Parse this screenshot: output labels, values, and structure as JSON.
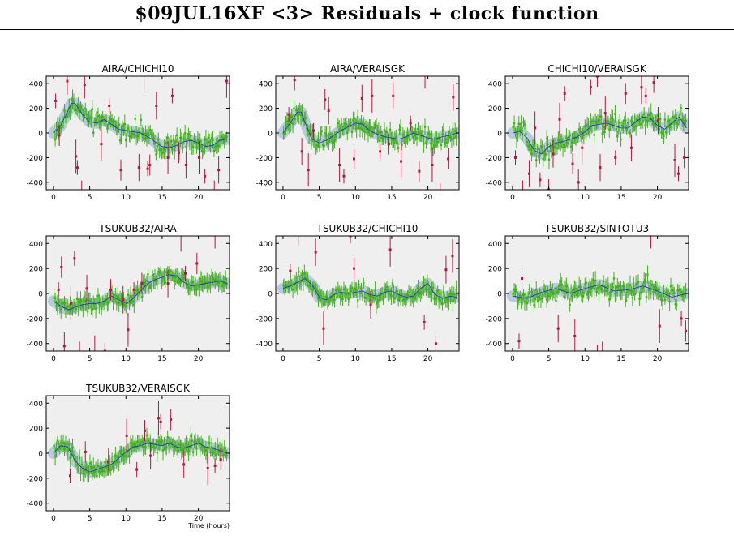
{
  "header": {
    "title": "$09JUL16XF <3> Residuals + clock function"
  },
  "colors": {
    "good_points": "#44b020",
    "flagged_points": "#b01840",
    "clock_function": "#2030c0",
    "clock_band": "#b4c4dc",
    "panel_background": "#efefef"
  },
  "chart_data": [
    {
      "type": "scatter",
      "title": "AIRA/CHICHI10",
      "xlabel": "",
      "ylabel": "",
      "xlim": [
        -1,
        24.3
      ],
      "ylim": [
        -460,
        460
      ],
      "xticks": [
        0,
        5,
        10,
        15,
        20
      ],
      "yticks": [
        -400,
        -200,
        0,
        200,
        400
      ],
      "grid": false,
      "clock_function": {
        "x": [
          0,
          1,
          2,
          2.5,
          3,
          4,
          5,
          6,
          7,
          8,
          9,
          10,
          11,
          12,
          13,
          14,
          15,
          16,
          17,
          18,
          19,
          20,
          21,
          22,
          23,
          24
        ],
        "y": [
          0,
          60,
          180,
          240,
          240,
          150,
          90,
          80,
          110,
          70,
          30,
          20,
          10,
          0,
          -30,
          -70,
          -110,
          -120,
          -100,
          -70,
          -60,
          -80,
          -110,
          -100,
          -60,
          -50
        ]
      },
      "flagged": {
        "x": [
          0.3,
          0.8,
          1.9,
          3.1,
          3.3,
          3.9,
          4.3,
          6.6,
          7.7,
          9.3,
          11.8,
          12.5,
          13.0,
          13.3,
          14.2,
          15.8,
          16.4,
          17.3,
          18.3,
          20.1,
          20.9,
          22.2,
          22.8,
          23.9
        ],
        "y": [
          260,
          -20,
          420,
          -190,
          -280,
          -470,
          390,
          -90,
          220,
          -300,
          -280,
          470,
          -290,
          -260,
          220,
          -200,
          300,
          -160,
          -260,
          -200,
          -350,
          -470,
          -300,
          420
        ]
      },
      "good_noise": 70,
      "n_good": 150
    },
    {
      "type": "scatter",
      "title": "AIRA/VERAISGK",
      "xlabel": "",
      "ylabel": "",
      "xlim": [
        -1,
        24.3
      ],
      "ylim": [
        -460,
        460
      ],
      "xticks": [
        0,
        5,
        10,
        15,
        20
      ],
      "yticks": [
        -400,
        -200,
        0,
        200,
        400
      ],
      "grid": false,
      "clock_function": {
        "x": [
          0,
          1,
          2,
          2.5,
          3,
          4,
          5,
          6,
          7,
          8,
          9,
          10,
          11,
          12,
          13,
          14,
          15,
          16,
          17,
          18,
          19,
          20,
          21,
          22,
          23,
          24
        ],
        "y": [
          0,
          80,
          170,
          170,
          90,
          -50,
          -80,
          -60,
          -20,
          20,
          50,
          80,
          70,
          20,
          -10,
          -30,
          -40,
          -50,
          -30,
          0,
          -20,
          -40,
          -50,
          -30,
          -20,
          0
        ]
      },
      "flagged": {
        "x": [
          0.8,
          1.6,
          2.6,
          3.5,
          4.2,
          5.8,
          6.3,
          7.8,
          8.4,
          9.8,
          10.9,
          12.3,
          13.4,
          14.6,
          15.2,
          16.3,
          17.6,
          18.8,
          19.6,
          20.6,
          21.7,
          22.8,
          23.5
        ],
        "y": [
          150,
          430,
          -150,
          -300,
          20,
          270,
          180,
          -260,
          -350,
          -210,
          280,
          300,
          -150,
          -90,
          300,
          -230,
          80,
          -310,
          470,
          -260,
          -470,
          -210,
          290
        ]
      },
      "good_noise": 65,
      "n_good": 150
    },
    {
      "type": "scatter",
      "title": "CHICHI10/VERAISGK",
      "xlabel": "",
      "ylabel": "",
      "xlim": [
        -1,
        24.3
      ],
      "ylim": [
        -460,
        460
      ],
      "xticks": [
        0,
        5,
        10,
        15,
        20
      ],
      "yticks": [
        -400,
        -200,
        0,
        200,
        400
      ],
      "grid": false,
      "clock_function": {
        "x": [
          0,
          1,
          2,
          3,
          4,
          5,
          6,
          7,
          8,
          9,
          10,
          11,
          12,
          13,
          14,
          15,
          16,
          17,
          18,
          19,
          20,
          21,
          22,
          23,
          24
        ],
        "y": [
          0,
          10,
          -40,
          -140,
          -170,
          -110,
          -80,
          -70,
          -50,
          -30,
          10,
          60,
          70,
          80,
          60,
          40,
          40,
          90,
          130,
          120,
          60,
          30,
          80,
          130,
          40
        ]
      },
      "flagged": {
        "x": [
          0.4,
          1.4,
          2.3,
          3.1,
          3.8,
          5.0,
          5.6,
          6.5,
          7.2,
          8.3,
          9.1,
          9.6,
          10.8,
          11.7,
          12.1,
          12.8,
          14.2,
          15.6,
          16.4,
          17.8,
          18.4,
          19.5,
          20.1,
          22.4,
          22.9,
          23.7
        ],
        "y": [
          -200,
          -470,
          -330,
          40,
          -380,
          -460,
          -170,
          110,
          320,
          -250,
          -400,
          -120,
          370,
          460,
          -280,
          160,
          -200,
          320,
          -120,
          370,
          300,
          410,
          100,
          -220,
          -330,
          -200
        ]
      },
      "good_noise": 75,
      "n_good": 150
    },
    {
      "type": "scatter",
      "title": "TSUKUB32/AIRA",
      "xlabel": "",
      "ylabel": "",
      "xlim": [
        -1,
        24.3
      ],
      "ylim": [
        -460,
        460
      ],
      "xticks": [
        0,
        5,
        10,
        15,
        20
      ],
      "yticks": [
        -400,
        -200,
        0,
        200,
        400
      ],
      "grid": false,
      "clock_function": {
        "x": [
          0,
          1,
          2,
          3,
          4,
          5,
          6,
          7,
          8,
          9,
          10,
          11,
          12,
          13,
          14,
          15,
          16,
          17,
          18,
          19,
          20,
          21,
          22,
          23,
          24
        ],
        "y": [
          -60,
          -100,
          -130,
          -110,
          -90,
          -80,
          -80,
          -60,
          -20,
          -50,
          -80,
          -40,
          20,
          80,
          110,
          130,
          150,
          140,
          90,
          60,
          70,
          80,
          90,
          100,
          80
        ]
      },
      "flagged": {
        "x": [
          0.7,
          1.1,
          1.5,
          2.4,
          2.9,
          3.6,
          4.6,
          5.7,
          7.1,
          7.9,
          9.6,
          10.3,
          11.1,
          12.2,
          15.8,
          17.6,
          18.2,
          19.8,
          22.3
        ],
        "y": [
          30,
          210,
          -420,
          -80,
          280,
          -470,
          40,
          -470,
          -460,
          30,
          -50,
          -290,
          30,
          80,
          80,
          470,
          160,
          240,
          470
        ]
      },
      "good_noise": 55,
      "n_good": 150
    },
    {
      "type": "scatter",
      "title": "TSUKUB32/CHICHI10",
      "xlabel": "",
      "ylabel": "",
      "xlim": [
        -1,
        24.3
      ],
      "ylim": [
        -460,
        460
      ],
      "xticks": [
        0,
        5,
        10,
        15,
        20
      ],
      "yticks": [
        -400,
        -200,
        0,
        200,
        400
      ],
      "grid": false,
      "clock_function": {
        "x": [
          0,
          1,
          2,
          3,
          4,
          5,
          6,
          7,
          8,
          9,
          10,
          11,
          12,
          13,
          14,
          15,
          16,
          17,
          18,
          19,
          20,
          21,
          22,
          23,
          24
        ],
        "y": [
          40,
          60,
          90,
          120,
          70,
          -30,
          -50,
          -10,
          10,
          0,
          10,
          20,
          -10,
          -20,
          10,
          20,
          -10,
          -30,
          -20,
          40,
          80,
          -10,
          -40,
          -20,
          -30
        ]
      },
      "flagged": {
        "x": [
          1.0,
          2.1,
          4.5,
          5.6,
          9.3,
          9.8,
          12.1,
          14.8,
          19.5,
          21.1,
          22.5,
          23.4
        ],
        "y": [
          180,
          470,
          330,
          -280,
          460,
          200,
          -90,
          350,
          -230,
          -400,
          190,
          300
        ]
      },
      "good_noise": 55,
      "n_good": 150
    },
    {
      "type": "scatter",
      "title": "TSUKUB32/SINTOTU3",
      "xlabel": "",
      "ylabel": "",
      "xlim": [
        -1,
        24.3
      ],
      "ylim": [
        -460,
        460
      ],
      "xticks": [
        0,
        5,
        10,
        15,
        20
      ],
      "yticks": [
        -400,
        -200,
        0,
        200,
        400
      ],
      "grid": false,
      "clock_function": {
        "x": [
          0,
          2,
          4,
          6,
          8,
          10,
          12,
          14,
          16,
          18,
          20,
          22,
          24
        ],
        "y": [
          -20,
          -40,
          10,
          40,
          0,
          40,
          70,
          20,
          30,
          60,
          20,
          -30,
          0
        ]
      },
      "flagged": {
        "x": [
          0.9,
          1.3,
          6.3,
          8.6,
          11.7,
          12.4,
          19.1,
          20.3,
          23.3,
          23.9
        ],
        "y": [
          -380,
          120,
          -280,
          -340,
          -470,
          -470,
          470,
          -260,
          -200,
          -300
        ]
      },
      "good_noise": 80,
      "n_good": 150
    },
    {
      "type": "scatter",
      "title": "TSUKUB32/VERAISGK",
      "xlabel": "Time (hours)",
      "ylabel": "",
      "xlim": [
        -1,
        24.3
      ],
      "ylim": [
        -460,
        460
      ],
      "xticks": [
        0,
        5,
        10,
        15,
        20
      ],
      "yticks": [
        -400,
        -200,
        0,
        200,
        400
      ],
      "grid": false,
      "clock_function": {
        "x": [
          0,
          1,
          2,
          3,
          4,
          5,
          6,
          7,
          8,
          9,
          10,
          11,
          12,
          13,
          14,
          15,
          16,
          17,
          18,
          19,
          20,
          21,
          22,
          23,
          24
        ],
        "y": [
          0,
          60,
          50,
          -60,
          -120,
          -150,
          -130,
          -110,
          -90,
          -40,
          10,
          50,
          60,
          80,
          70,
          60,
          80,
          50,
          40,
          60,
          80,
          50,
          40,
          20,
          0
        ]
      },
      "flagged": {
        "x": [
          2.3,
          4.4,
          7.6,
          10.1,
          11.5,
          12.6,
          13.4,
          14.5,
          14.8,
          16.2,
          18.0,
          21.3,
          22.3,
          23.1
        ],
        "y": [
          -180,
          10,
          -70,
          140,
          -130,
          180,
          -20,
          280,
          250,
          270,
          -90,
          -120,
          -100,
          -50
        ]
      },
      "good_noise": 55,
      "n_good": 150
    }
  ]
}
